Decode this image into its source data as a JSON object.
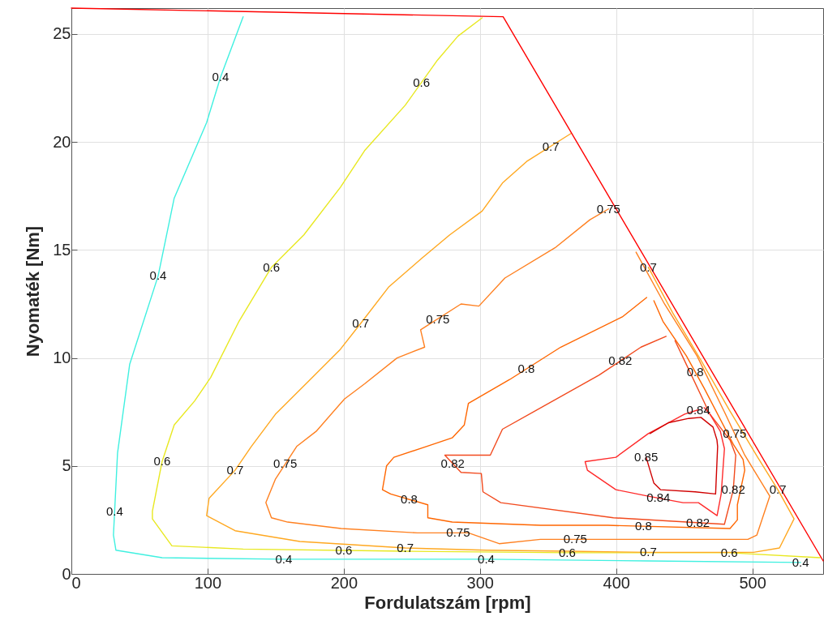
{
  "chart_data": {
    "type": "line",
    "xlabel": "Fordulatszám [rpm]",
    "ylabel": "Nyomaték [Nm]",
    "xlim": [
      0,
      552
    ],
    "ylim": [
      0,
      26.2
    ],
    "xticks": [
      0,
      100,
      200,
      300,
      400,
      500
    ],
    "yticks": [
      0,
      5,
      10,
      15,
      20,
      25
    ],
    "grid": true,
    "line_style": "solid",
    "marker": "none",
    "series": [
      {
        "color": "#40f0e0",
        "x": [
          126.1,
          109.5,
          99.3,
          75.5,
          63.7,
          42.8,
          33.9,
          30.9,
          32.7,
          66.6,
          155.9,
          304.6,
          423.6,
          535.4
        ],
        "values": [
          25.8,
          23.0,
          20.9,
          17.4,
          13.8,
          9.7,
          5.6,
          1.8,
          1.1,
          0.75,
          0.68,
          0.68,
          0.6,
          0.53
        ]
      },
      {
        "color": "#e8e820",
        "x": [
          301.6,
          283.8,
          268.9,
          245.1,
          215.3,
          197.5,
          170.7,
          146.9,
          123.1,
          102.3,
          90.4,
          75.5,
          66.6,
          59.5,
          59.5,
          73.8,
          126.1,
          245.1,
          364.1,
          483.0,
          549.7
        ],
        "values": [
          25.75,
          24.9,
          23.8,
          21.7,
          19.6,
          17.9,
          15.7,
          14.2,
          11.7,
          9.1,
          8.0,
          6.9,
          5.2,
          2.9,
          2.55,
          1.3,
          1.15,
          1.05,
          0.98,
          0.98,
          0.75
        ]
      },
      {
        "color": "#ffa820",
        "x": [
          367.0,
          334.3,
          316.5,
          301.6,
          277.8,
          257.0,
          233.2,
          212.4,
          197.5,
          173.7,
          149.9,
          132.1,
          120.2,
          101.1,
          99.3,
          120.2,
          167.8,
          245.1,
          304.6,
          364.1,
          423.6,
          500.9,
          519.9,
          530.6,
          518.7,
          503.9,
          483.0,
          462.2,
          441.4,
          423.6
        ],
        "values": [
          20.4,
          19.1,
          18.1,
          16.8,
          15.7,
          14.6,
          13.3,
          11.6,
          10.4,
          8.9,
          7.4,
          5.9,
          4.8,
          3.5,
          2.7,
          2.0,
          1.5,
          1.2,
          1.1,
          1.05,
          1.0,
          1.0,
          1.2,
          2.55,
          3.9,
          5.4,
          7.6,
          9.9,
          12.1,
          14.2
        ]
      },
      {
        "color": "#ff8020",
        "x": [
          394.4,
          380.7,
          355.1,
          318.3,
          299.2,
          286.1,
          256.4,
          259.4,
          239.1,
          215.3,
          200.5,
          179.7,
          165.4,
          149.9,
          142.8,
          146.9,
          158.8,
          198.1,
          254.0,
          291.5,
          314.1,
          344.4,
          398.0,
          496.7,
          503.3,
          512.8,
          494.4,
          479.5,
          459.3,
          435.5,
          414.6
        ],
        "values": [
          16.9,
          16.4,
          15.1,
          13.7,
          12.4,
          12.5,
          11.3,
          10.5,
          10.0,
          8.8,
          8.1,
          6.6,
          5.9,
          4.4,
          3.3,
          2.6,
          2.4,
          2.1,
          1.9,
          1.9,
          1.4,
          1.6,
          1.6,
          1.6,
          1.8,
          3.6,
          5.5,
          7.5,
          10.1,
          12.5,
          14.9
        ]
      },
      {
        "color": "#ff6600",
        "x": [
          422.4,
          404.5,
          359.3,
          321.8,
          291.5,
          288.5,
          279.6,
          260.6,
          236.8,
          231.4,
          228.4,
          234.4,
          261.7,
          261.7,
          279.6,
          344.4,
          393.8,
          483.6,
          489.0,
          489.0,
          494.4,
          493.2,
          486.0,
          464.6,
          451.5,
          434.3,
          427.7
        ],
        "values": [
          12.8,
          11.9,
          10.5,
          9.0,
          7.9,
          6.9,
          6.3,
          5.9,
          5.4,
          5.0,
          3.9,
          3.7,
          3.2,
          2.6,
          2.4,
          2.25,
          2.25,
          2.1,
          2.5,
          3.2,
          4.8,
          5.3,
          6.0,
          8.6,
          10.1,
          11.7,
          12.65
        ]
      },
      {
        "color": "#f24a1e",
        "x": [
          436.7,
          418.2,
          387.3,
          316.5,
          307.6,
          274.2,
          286.1,
          301.0,
          302.2,
          315.3,
          398.0,
          479.5,
          480.7,
          486.0,
          487.8,
          483.6,
          467.6,
          465.8,
          448.5,
          443.2
        ],
        "values": [
          11.0,
          10.5,
          9.2,
          6.7,
          5.5,
          5.5,
          4.7,
          4.65,
          3.8,
          3.3,
          2.6,
          2.3,
          2.6,
          3.9,
          5.5,
          6.2,
          7.5,
          7.8,
          10.1,
          10.8
        ]
      },
      {
        "color": "#ff2a2a",
        "x": [
          460.4,
          450.3,
          423.6,
          399.8,
          377.2,
          378.9,
          399.8,
          423.6,
          449.1,
          460.4,
          474.1,
          477.1,
          479.5,
          476.5,
          468.8,
          464.6
        ],
        "values": [
          7.6,
          7.4,
          6.5,
          5.4,
          5.2,
          4.8,
          3.9,
          3.6,
          3.3,
          3.3,
          2.7,
          3.7,
          5.8,
          6.6,
          7.4,
          7.7
        ]
      },
      {
        "color": "#d00000",
        "x": [
          424.8,
          438.4,
          453.3,
          462.2,
          471.1,
          474.0,
          474.5,
          473.0,
          458.0,
          432.5,
          427.7,
          422
        ],
        "values": [
          6.5,
          7.0,
          7.2,
          7.25,
          6.8,
          6.2,
          5.9,
          3.7,
          3.8,
          3.9,
          4.2,
          5.4
        ]
      },
      {
        "color": "#ff0000",
        "x": [
          0,
          317,
          552
        ],
        "values": [
          26.2,
          25.8,
          0.6
        ]
      }
    ],
    "annotations": [
      {
        "text": "0.4",
        "x": 109.5,
        "y": 23.0
      },
      {
        "text": "0.4",
        "x": 63.7,
        "y": 13.8
      },
      {
        "text": "0.4",
        "x": 31.8,
        "y": 2.9
      },
      {
        "text": "0.4",
        "x": 155.9,
        "y": 0.68
      },
      {
        "text": "0.4",
        "x": 304.6,
        "y": 0.68
      },
      {
        "text": "0.4",
        "x": 535.4,
        "y": 0.53
      },
      {
        "text": "0.6",
        "x": 257,
        "y": 22.75
      },
      {
        "text": "0.6",
        "x": 146.9,
        "y": 14.2
      },
      {
        "text": "0.6",
        "x": 66.6,
        "y": 5.2
      },
      {
        "text": "0.6",
        "x": 200,
        "y": 1.09
      },
      {
        "text": "0.6",
        "x": 364.1,
        "y": 0.98
      },
      {
        "text": "0.6",
        "x": 483.0,
        "y": 0.98
      },
      {
        "text": "0.7",
        "x": 352,
        "y": 19.8
      },
      {
        "text": "0.7",
        "x": 212.4,
        "y": 11.6
      },
      {
        "text": "0.7",
        "x": 120.2,
        "y": 4.8
      },
      {
        "text": "0.7",
        "x": 245.1,
        "y": 1.2
      },
      {
        "text": "0.7",
        "x": 423.6,
        "y": 1.0
      },
      {
        "text": "0.7",
        "x": 423.6,
        "y": 14.2
      },
      {
        "text": "0.7",
        "x": 518.7,
        "y": 3.9
      },
      {
        "text": "0.75",
        "x": 157,
        "y": 5.09
      },
      {
        "text": "0.75",
        "x": 269,
        "y": 11.8
      },
      {
        "text": "0.75",
        "x": 284,
        "y": 1.9
      },
      {
        "text": "0.75",
        "x": 370,
        "y": 1.6
      },
      {
        "text": "0.75",
        "x": 394.4,
        "y": 16.9
      },
      {
        "text": "0.75",
        "x": 487,
        "y": 6.5
      },
      {
        "text": "0.8",
        "x": 334,
        "y": 9.5
      },
      {
        "text": "0.8",
        "x": 248,
        "y": 3.45
      },
      {
        "text": "0.8",
        "x": 420,
        "y": 2.21
      },
      {
        "text": "0.8",
        "x": 458,
        "y": 9.36
      },
      {
        "text": "0.82",
        "x": 403,
        "y": 9.86
      },
      {
        "text": "0.82",
        "x": 280,
        "y": 5.11
      },
      {
        "text": "0.82",
        "x": 460,
        "y": 2.37
      },
      {
        "text": "0.82",
        "x": 486.0,
        "y": 3.9
      },
      {
        "text": "0.84",
        "x": 460.4,
        "y": 7.6
      },
      {
        "text": "0.84",
        "x": 431,
        "y": 3.51
      },
      {
        "text": "0.85",
        "x": 422,
        "y": 5.4
      }
    ]
  }
}
